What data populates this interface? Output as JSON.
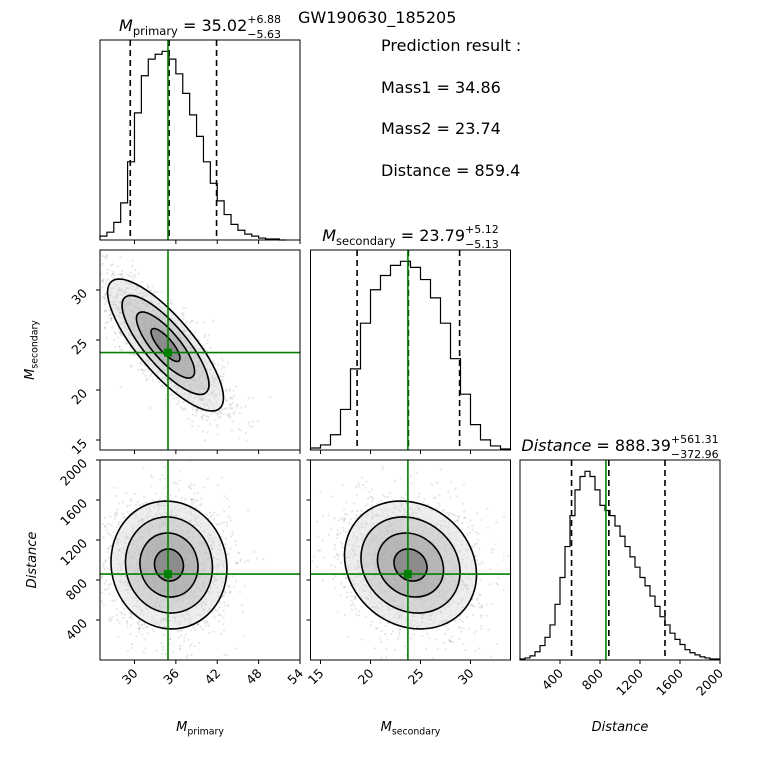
{
  "event_name": "GW190630_185205",
  "prediction": {
    "heading": "Prediction result :",
    "mass1": "Mass1 = 34.86",
    "mass2": "Mass2 = 23.74",
    "distance": "Distance = 859.4"
  },
  "colors": {
    "truth": "#008000",
    "hist": "#000000",
    "quantile": "#000000",
    "points": "#777777"
  },
  "chart_data": {
    "type": "corner",
    "parameters": [
      {
        "key": "m1",
        "symbol": "M",
        "subscript": "primary",
        "italic": true,
        "range": [
          25,
          54
        ],
        "ticks": [
          30,
          36,
          42,
          48,
          54
        ],
        "title_value": "35.02",
        "title_plus": "+6.88",
        "title_minus": "−5.63",
        "quantiles": [
          29.39,
          35.02,
          41.9
        ],
        "truth": 34.86,
        "hist_centers": [
          25.5,
          26.5,
          27.5,
          28.5,
          29.5,
          30.5,
          31.5,
          32.5,
          33.5,
          34.5,
          35.5,
          36.5,
          37.5,
          38.5,
          39.5,
          40.5,
          41.5,
          42.5,
          43.5,
          44.5,
          45.5,
          46.5,
          47.5,
          48.5,
          49.5,
          50.5,
          51.5
        ],
        "hist_counts": [
          4,
          8,
          18,
          38,
          80,
          130,
          168,
          185,
          190,
          193,
          185,
          170,
          150,
          128,
          106,
          80,
          58,
          40,
          26,
          16,
          10,
          6,
          4,
          2,
          1,
          1,
          0
        ]
      },
      {
        "key": "m2",
        "symbol": "M",
        "subscript": "secondary",
        "italic": true,
        "range": [
          14,
          34
        ],
        "ticks": [
          15,
          20,
          25,
          30
        ],
        "title_value": "23.79",
        "title_plus": "+5.12",
        "title_minus": "−5.13",
        "quantiles": [
          18.66,
          23.79,
          28.91
        ],
        "truth": 23.74,
        "hist_centers": [
          14.5,
          15.5,
          16.5,
          17.5,
          18.5,
          19.5,
          20.5,
          21.5,
          22.5,
          23.5,
          24.5,
          25.5,
          26.5,
          27.5,
          28.5,
          29.5,
          30.5,
          31.5,
          32.5,
          33.5
        ],
        "hist_counts": [
          2,
          5,
          15,
          40,
          80,
          125,
          158,
          172,
          182,
          186,
          180,
          168,
          150,
          125,
          90,
          55,
          25,
          10,
          4,
          1
        ]
      },
      {
        "key": "dist",
        "symbol": "Distance",
        "subscript": "",
        "italic": true,
        "range": [
          0,
          2000
        ],
        "ticks": [
          400,
          800,
          1200,
          1600,
          2000
        ],
        "title_value": "888.39",
        "title_plus": "+561.31",
        "title_minus": "−372.96",
        "quantiles": [
          515.43,
          888.39,
          1449.7
        ],
        "truth": 859.4,
        "hist_centers": [
          25,
          75,
          125,
          175,
          225,
          275,
          325,
          375,
          425,
          475,
          525,
          575,
          625,
          675,
          725,
          775,
          825,
          875,
          925,
          975,
          1025,
          1075,
          1125,
          1175,
          1225,
          1275,
          1325,
          1375,
          1425,
          1475,
          1525,
          1575,
          1625,
          1675,
          1725,
          1775,
          1825,
          1875,
          1925,
          1975
        ],
        "hist_counts": [
          1,
          2,
          4,
          8,
          14,
          22,
          34,
          54,
          80,
          110,
          140,
          165,
          178,
          183,
          178,
          165,
          150,
          145,
          140,
          130,
          120,
          110,
          100,
          90,
          80,
          72,
          62,
          52,
          42,
          34,
          26,
          20,
          15,
          10,
          7,
          5,
          3,
          2,
          1,
          1
        ]
      }
    ],
    "contour_pairs": [
      {
        "x": "m1",
        "y": "m2",
        "mean": [
          34.5,
          24.5
        ],
        "sd": [
          4.2,
          3.3
        ],
        "rho": -0.8
      },
      {
        "x": "m1",
        "y": "dist",
        "mean": [
          35.0,
          950
        ],
        "sd": [
          4.2,
          320
        ],
        "rho": -0.05
      },
      {
        "x": "m2",
        "y": "dist",
        "mean": [
          24.0,
          950
        ],
        "sd": [
          3.3,
          320
        ],
        "rho": -0.15
      }
    ]
  }
}
